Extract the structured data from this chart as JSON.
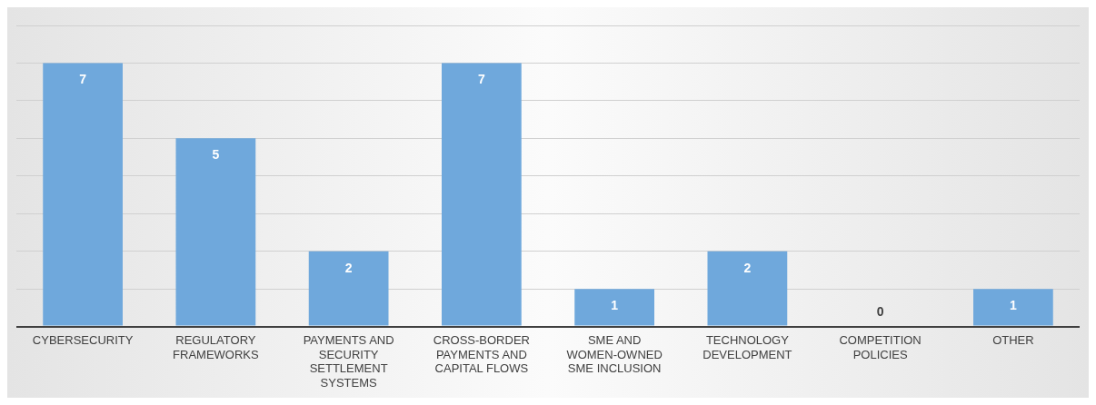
{
  "chart_data": {
    "type": "bar",
    "categories": [
      "CYBERSECURITY",
      "REGULATORY FRAMEWORKS",
      "PAYMENTS AND SECURITY SETTLEMENT SYSTEMS",
      "CROSS-BORDER PAYMENTS AND CAPITAL FLOWS",
      "SME AND WOMEN-OWNED SME INCLUSION",
      "TECHNOLOGY DEVELOPMENT",
      "COMPETITION POLICIES",
      "OTHER"
    ],
    "values": [
      7,
      5,
      2,
      7,
      1,
      2,
      0,
      1
    ],
    "color": "#6fa8dc",
    "ylim": [
      0,
      8
    ],
    "yticks": [
      {
        "value": 0,
        "label": null
      },
      {
        "value": 1,
        "label": null
      },
      {
        "value": 2,
        "label": null
      },
      {
        "value": 3,
        "label": null
      },
      {
        "value": 4,
        "label": null
      },
      {
        "value": 5,
        "label": null
      },
      {
        "value": 6,
        "label": null
      },
      {
        "value": 7,
        "label": null
      },
      {
        "value": 8,
        "label": null
      }
    ],
    "tick_labels": "x",
    "grid": "y",
    "data_labels": true
  }
}
